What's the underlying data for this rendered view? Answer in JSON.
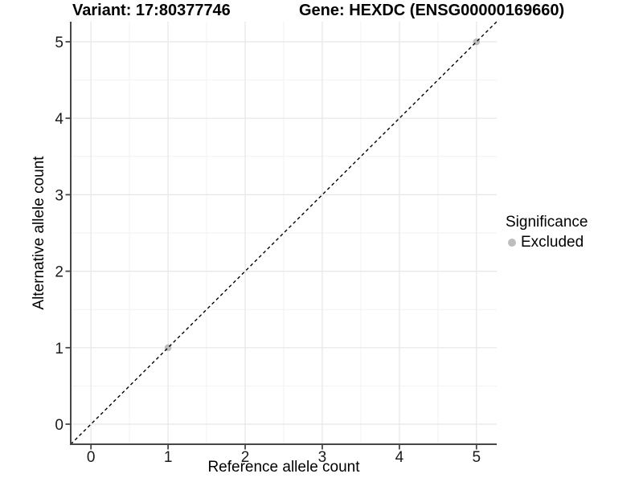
{
  "header": {
    "variant_title": "Variant: 17:80377746",
    "gene_title": "Gene: HEXDC (ENSG00000169660)"
  },
  "legend": {
    "title": "Significance",
    "items": [
      {
        "label": "Excluded",
        "color": "#bdbdbd"
      }
    ]
  },
  "chart_data": {
    "type": "scatter",
    "title_left": "Variant: 17:80377746",
    "title_right": "Gene: HEXDC (ENSG00000169660)",
    "xlabel": "Reference allele count",
    "ylabel": "Alternative allele count",
    "xlim": [
      -0.2625,
      5.2625
    ],
    "ylim": [
      -0.2625,
      5.2625
    ],
    "xticks": [
      0,
      1,
      2,
      3,
      4,
      5
    ],
    "yticks": [
      0,
      1,
      2,
      3,
      4,
      5
    ],
    "minor_xticks": [
      0.5,
      1.5,
      2.5,
      3.5,
      4.5
    ],
    "minor_yticks": [
      0.5,
      1.5,
      2.5,
      3.5,
      4.5
    ],
    "grid": true,
    "legend_position": "right",
    "series": [
      {
        "name": "Excluded",
        "color": "#bdbdbd",
        "points": [
          {
            "x": 1,
            "y": 1
          },
          {
            "x": 5,
            "y": 5
          }
        ]
      }
    ],
    "reference_line": {
      "type": "identity",
      "style": "dashed",
      "from": [
        -0.2625,
        -0.2625
      ],
      "to": [
        5.2625,
        5.2625
      ],
      "color": "#000000"
    }
  },
  "colors": {
    "background": "#ffffff",
    "grid_major": "#e6e6e6",
    "grid_minor": "#f2f2f2",
    "axis_line": "#474747",
    "tick_label": "#1a1a1a",
    "title_text": "#000000",
    "dashed_line": "#000000",
    "point": "#bdbdbd"
  }
}
